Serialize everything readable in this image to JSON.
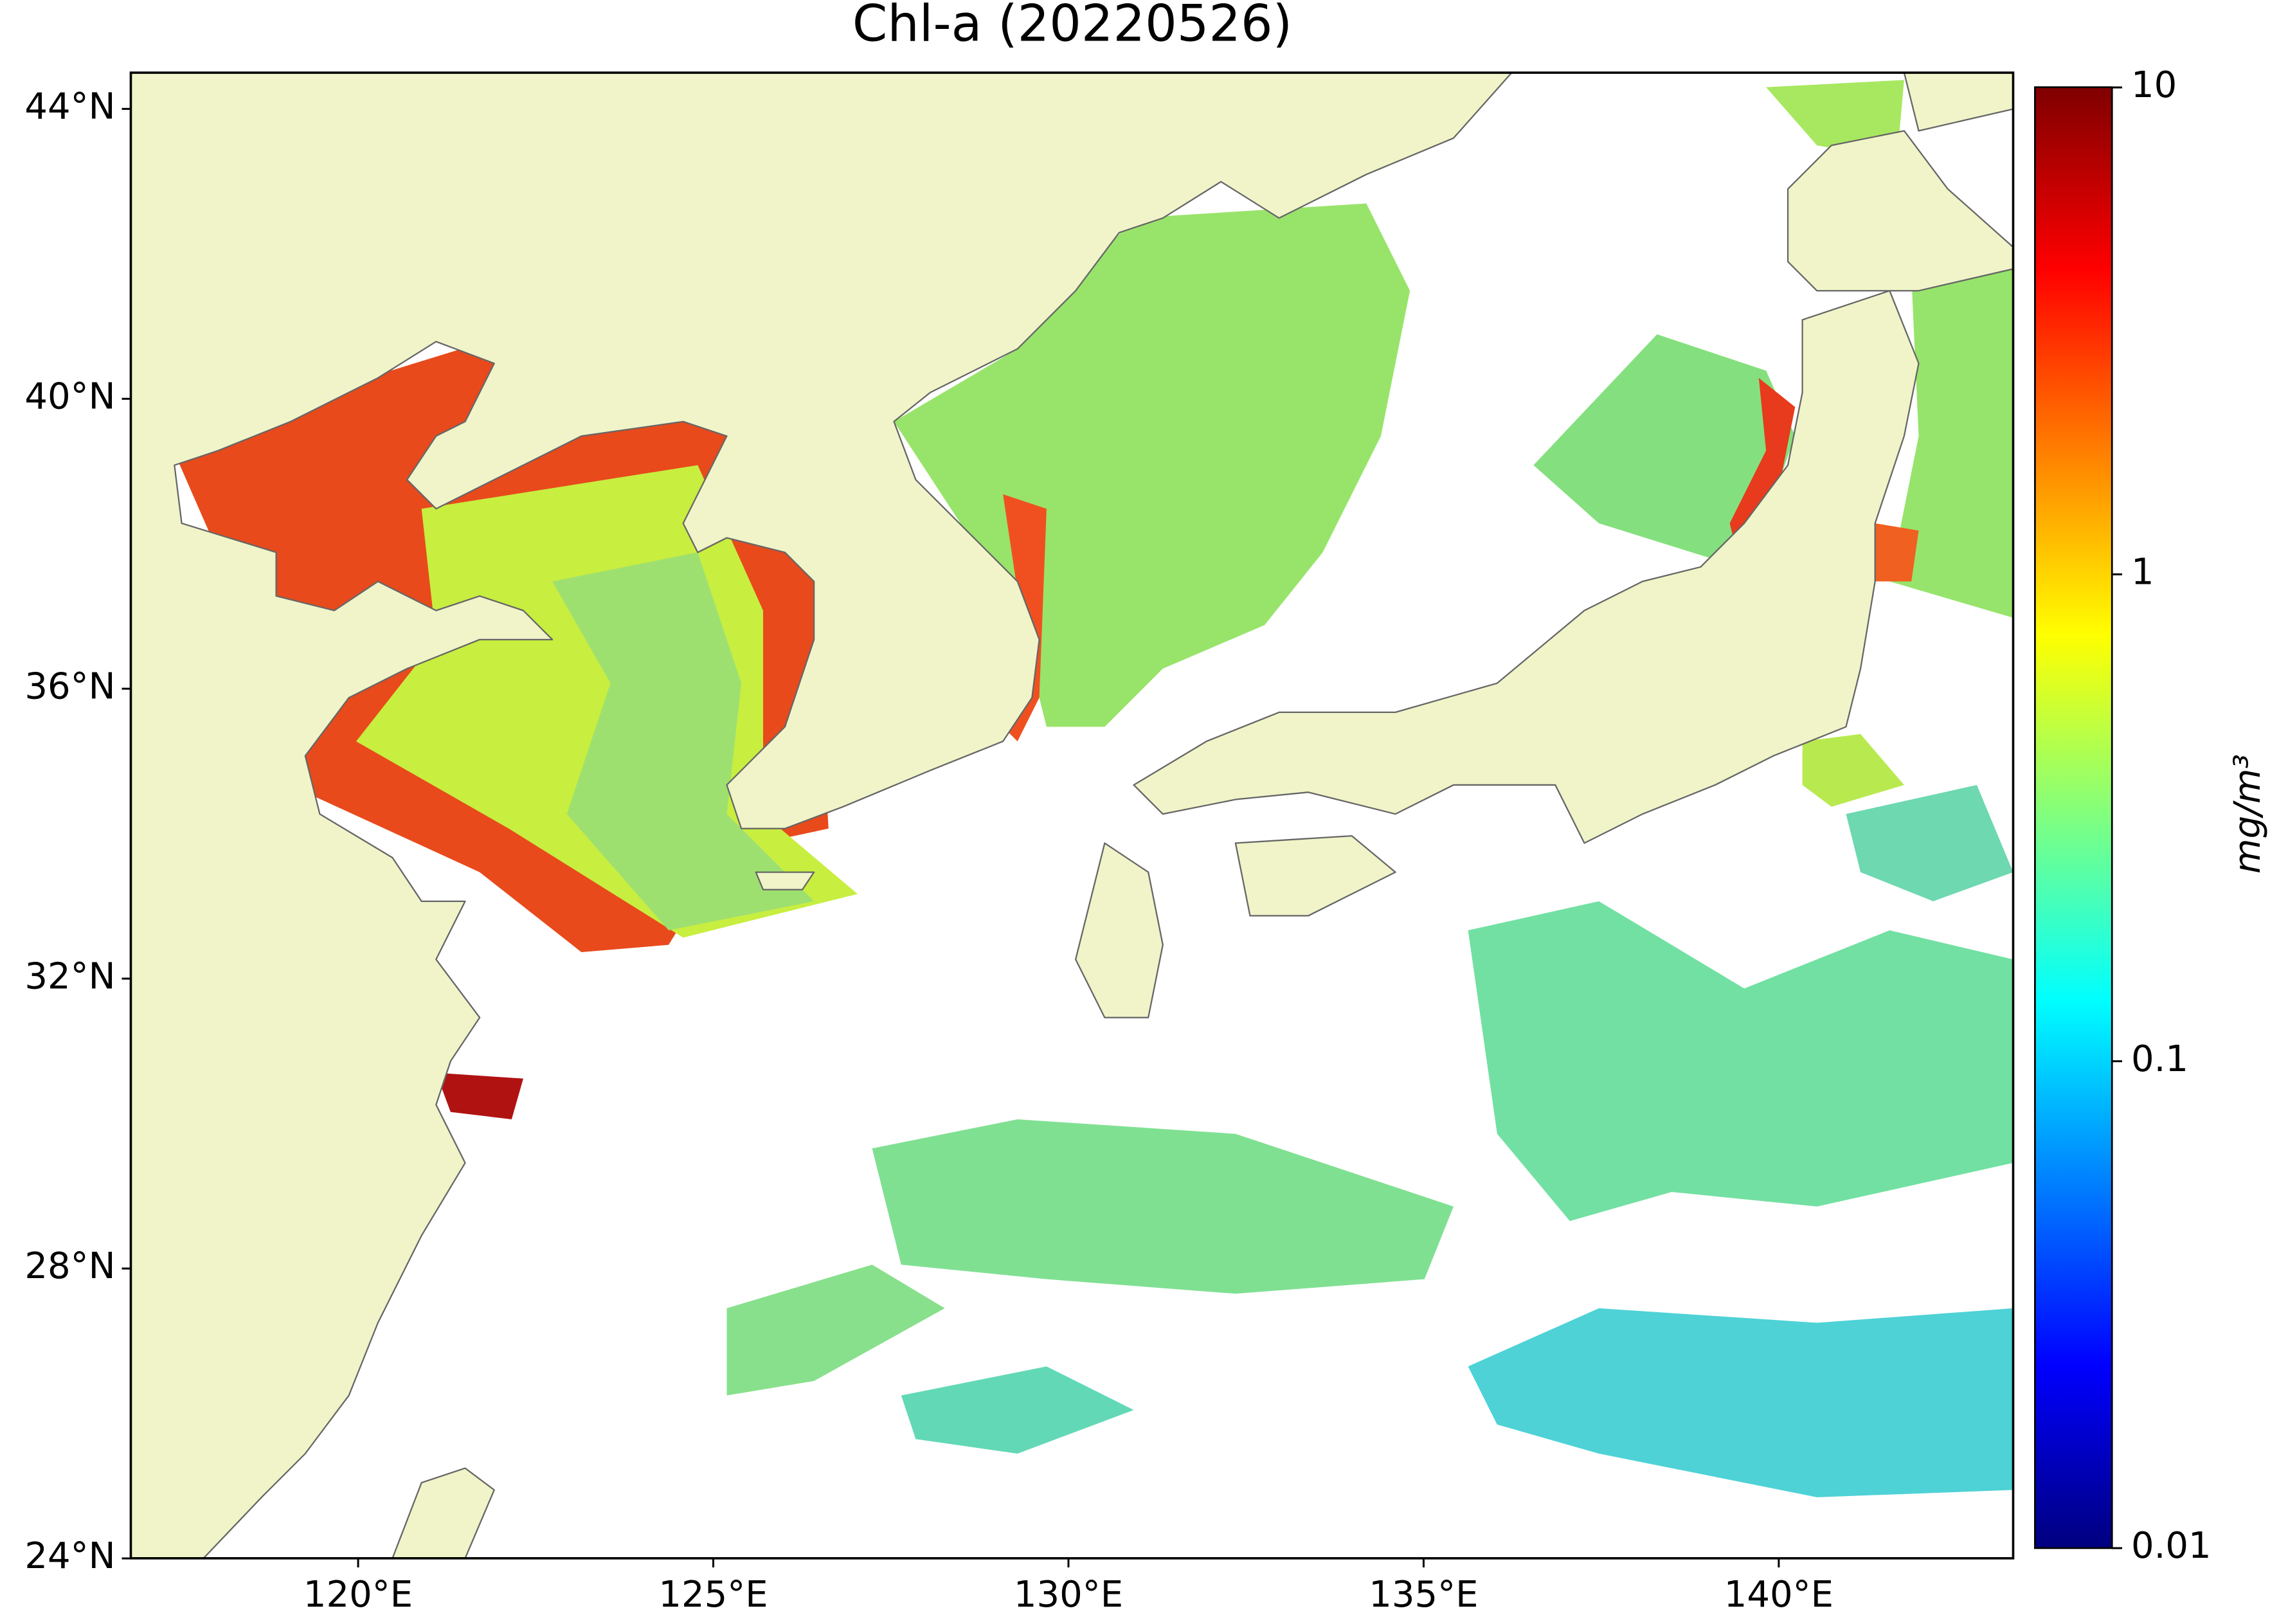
{
  "chart_data": {
    "type": "map",
    "title": "Chl-a (20220526)",
    "xlim": [
      116.8,
      143.3
    ],
    "ylim": [
      24,
      44.5
    ],
    "xticks": [
      {
        "value": 120,
        "label": "120°E"
      },
      {
        "value": 125,
        "label": "125°E"
      },
      {
        "value": 130,
        "label": "130°E"
      },
      {
        "value": 135,
        "label": "135°E"
      },
      {
        "value": 140,
        "label": "140°E"
      }
    ],
    "yticks": [
      {
        "value": 24,
        "label": "24°N"
      },
      {
        "value": 28,
        "label": "28°N"
      },
      {
        "value": 32,
        "label": "32°N"
      },
      {
        "value": 36,
        "label": "36°N"
      },
      {
        "value": 40,
        "label": "40°N"
      },
      {
        "value": 44,
        "label": "44°N"
      }
    ],
    "colorbar": {
      "label": "mg/m³",
      "scale": "log",
      "lim": [
        0.01,
        10
      ],
      "ticks": [
        0.01,
        0.1,
        1,
        10
      ]
    }
  }
}
